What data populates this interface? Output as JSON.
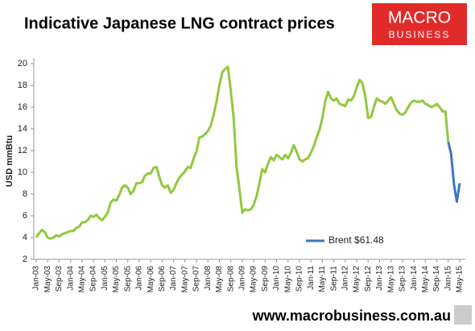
{
  "chart_data": {
    "type": "line",
    "title": "Indicative Japanese LNG contract prices",
    "ylabel": "USD mmBtu",
    "logo": {
      "top": "MACRO",
      "bottom": "BUSINESS"
    },
    "footer": "www.macrobusiness.com.au",
    "legend": "right",
    "categories": [
      "Jan-03",
      null,
      null,
      null,
      "May-03",
      null,
      null,
      null,
      "Sep-03",
      null,
      null,
      null,
      "Jan-04",
      null,
      null,
      null,
      "May-04",
      null,
      null,
      null,
      "Sep-04",
      null,
      null,
      null,
      "Jan-05",
      null,
      null,
      null,
      "May-05",
      null,
      null,
      null,
      "Sep-05",
      null,
      null,
      null,
      "Jan-06",
      null,
      null,
      null,
      "May-06",
      null,
      null,
      null,
      "Sep-06",
      null,
      null,
      null,
      "Jan-07",
      null,
      null,
      null,
      "May-07",
      null,
      null,
      null,
      "Sep-07",
      null,
      null,
      null,
      "Jan-08",
      null,
      null,
      null,
      "May-08",
      null,
      null,
      null,
      "Sep-08",
      null,
      null,
      null,
      "Jan-09",
      null,
      null,
      null,
      "May-09",
      null,
      null,
      null,
      "Sep-09",
      null,
      null,
      null,
      "Jan-10",
      null,
      null,
      null,
      "May-10",
      null,
      null,
      null,
      "Sep-10",
      null,
      null,
      null,
      "Jan-11",
      null,
      null,
      null,
      "May-11",
      null,
      null,
      null,
      "Sep-11",
      null,
      null,
      null,
      "Jan-12",
      null,
      null,
      null,
      "May-12",
      null,
      null,
      null,
      "Sep-12",
      null,
      null,
      null,
      "Jan-13",
      null,
      null,
      null,
      "May-13",
      null,
      null,
      null,
      "Sep-13",
      null,
      null,
      null,
      "Jan-14",
      null,
      null,
      null,
      "May-14",
      null,
      null,
      null,
      "Sep-14",
      null,
      null,
      null,
      "Jan-15",
      null,
      null,
      null,
      "May-15"
    ],
    "series": [
      {
        "color": "#92c83e",
        "values": [
          4.0,
          4.4,
          4.7,
          4.5,
          4.0,
          3.9,
          4.0,
          4.2,
          4.1,
          4.3,
          4.4,
          4.5,
          4.6,
          4.6,
          4.9,
          5.0,
          5.4,
          5.4,
          5.6,
          6.0,
          5.9,
          6.1,
          5.8,
          5.6,
          5.9,
          6.3,
          7.2,
          7.5,
          7.4,
          7.9,
          8.6,
          8.8,
          8.6,
          8.0,
          8.3,
          9.0,
          9.0,
          9.1,
          9.7,
          9.9,
          9.9,
          10.4,
          10.5,
          9.6,
          8.8,
          8.6,
          8.8,
          8.1,
          8.4,
          9.0,
          9.5,
          9.8,
          10.1,
          10.5,
          10.4,
          11.3,
          11.9,
          13.2,
          13.3,
          13.5,
          13.8,
          14.3,
          15.3,
          16.5,
          18.0,
          19.2,
          19.5,
          19.7,
          17.5,
          15.0,
          10.5,
          8.5,
          6.3,
          6.6,
          6.5,
          6.6,
          7.0,
          7.8,
          9.0,
          10.3,
          10.0,
          10.8,
          11.4,
          11.1,
          11.6,
          11.4,
          11.2,
          11.6,
          11.3,
          11.8,
          12.5,
          11.9,
          11.2,
          11.0,
          11.2,
          11.3,
          11.8,
          12.4,
          13.2,
          13.9,
          15.0,
          16.5,
          17.4,
          16.8,
          16.6,
          16.8,
          16.3,
          16.2,
          16.1,
          16.7,
          16.6,
          17.0,
          17.8,
          18.5,
          18.2,
          17.0,
          15.0,
          15.1,
          16.0,
          16.8,
          16.6,
          16.5,
          16.3,
          16.6,
          16.9,
          16.3,
          15.7,
          15.4,
          15.3,
          15.5,
          16.0,
          16.4,
          16.6,
          16.5,
          16.5,
          16.6,
          16.3,
          16.2,
          16.0,
          16.1,
          16.3,
          16.0,
          15.6,
          15.6,
          12.8,
          null,
          null,
          null,
          null
        ]
      },
      {
        "name": "Brent $61.48",
        "color": "#3d76c1",
        "values": [
          null,
          null,
          null,
          null,
          null,
          null,
          null,
          null,
          null,
          null,
          null,
          null,
          null,
          null,
          null,
          null,
          null,
          null,
          null,
          null,
          null,
          null,
          null,
          null,
          null,
          null,
          null,
          null,
          null,
          null,
          null,
          null,
          null,
          null,
          null,
          null,
          null,
          null,
          null,
          null,
          null,
          null,
          null,
          null,
          null,
          null,
          null,
          null,
          null,
          null,
          null,
          null,
          null,
          null,
          null,
          null,
          null,
          null,
          null,
          null,
          null,
          null,
          null,
          null,
          null,
          null,
          null,
          null,
          null,
          null,
          null,
          null,
          null,
          null,
          null,
          null,
          null,
          null,
          null,
          null,
          null,
          null,
          null,
          null,
          null,
          null,
          null,
          null,
          null,
          null,
          null,
          null,
          null,
          null,
          null,
          null,
          null,
          null,
          null,
          null,
          null,
          null,
          null,
          null,
          null,
          null,
          null,
          null,
          null,
          null,
          null,
          null,
          null,
          null,
          null,
          null,
          null,
          null,
          null,
          null,
          null,
          null,
          null,
          null,
          null,
          null,
          null,
          null,
          null,
          null,
          null,
          null,
          null,
          null,
          null,
          null,
          null,
          null,
          null,
          null,
          null,
          null,
          null,
          null,
          12.8,
          11.7,
          8.9,
          7.3,
          9.0
        ]
      }
    ],
    "ylim": [
      2,
      20
    ],
    "yticks": [
      2,
      4,
      6,
      8,
      10,
      12,
      14,
      16,
      18,
      20
    ]
  }
}
